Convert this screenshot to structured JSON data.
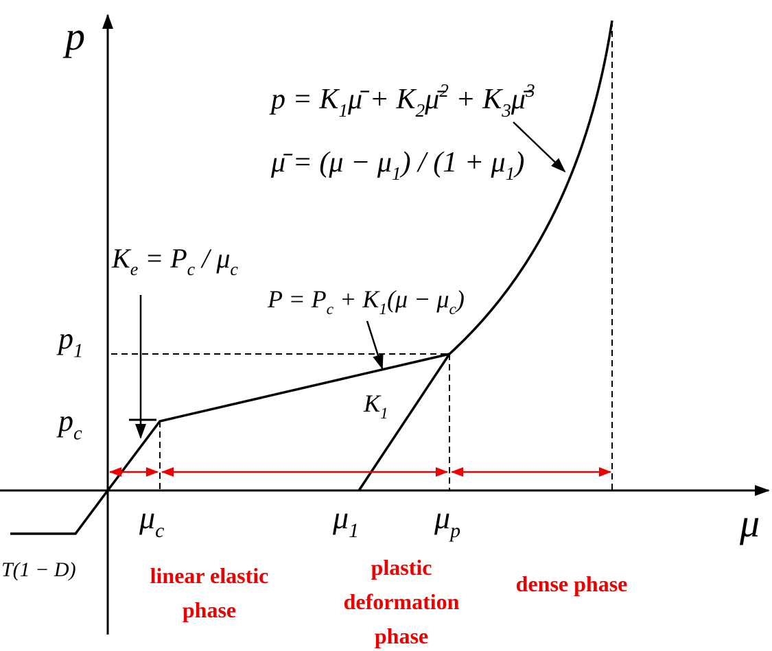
{
  "axes": {
    "y_label": [
      {
        "text": "p"
      }
    ],
    "x_label": [
      {
        "text": "μ"
      }
    ]
  },
  "labels": {
    "p1": [
      {
        "text": "p",
        "sub": "1"
      }
    ],
    "pc": [
      {
        "text": "p",
        "sub": "c"
      }
    ],
    "mu_c": [
      {
        "text": "μ",
        "sub": "c"
      }
    ],
    "mu_1": [
      {
        "text": "μ",
        "sub": "1"
      }
    ],
    "mu_p": [
      {
        "text": "μ",
        "sub": "p"
      }
    ],
    "tension": [
      {
        "text": "T(1 − D)"
      }
    ],
    "k1": [
      {
        "text": "K",
        "sub": "1"
      }
    ]
  },
  "formulas": {
    "ke": [
      {
        "text": "K",
        "sub": "e"
      },
      {
        "text": " = P",
        "sub": "c"
      },
      {
        "text": " / μ",
        "sub": "c"
      }
    ],
    "plastic": [
      {
        "text": "P = P",
        "sub": "c"
      },
      {
        "text": " + K",
        "sub": "1"
      },
      {
        "text": "(μ − μ",
        "sub": "c"
      },
      {
        "text": ")"
      }
    ],
    "dense": [
      {
        "text": "p = K",
        "sub": "1"
      },
      {
        "text": "μ̄ + K",
        "sub": "2"
      },
      {
        "text": "μ̄",
        "sup": "2"
      },
      {
        "text": " + K",
        "sub": "3"
      },
      {
        "text": "μ̄",
        "sup": "3"
      }
    ],
    "mu_bar": [
      {
        "text": "μ̄ = (μ − μ",
        "sub": "1"
      },
      {
        "text": ") / (1 + μ",
        "sub": "1"
      },
      {
        "text": ")"
      }
    ]
  },
  "phases": {
    "linear": [
      "linear elastic",
      "phase"
    ],
    "plastic": [
      "plastic",
      "deformation",
      "phase"
    ],
    "dense": [
      "dense phase"
    ]
  }
}
